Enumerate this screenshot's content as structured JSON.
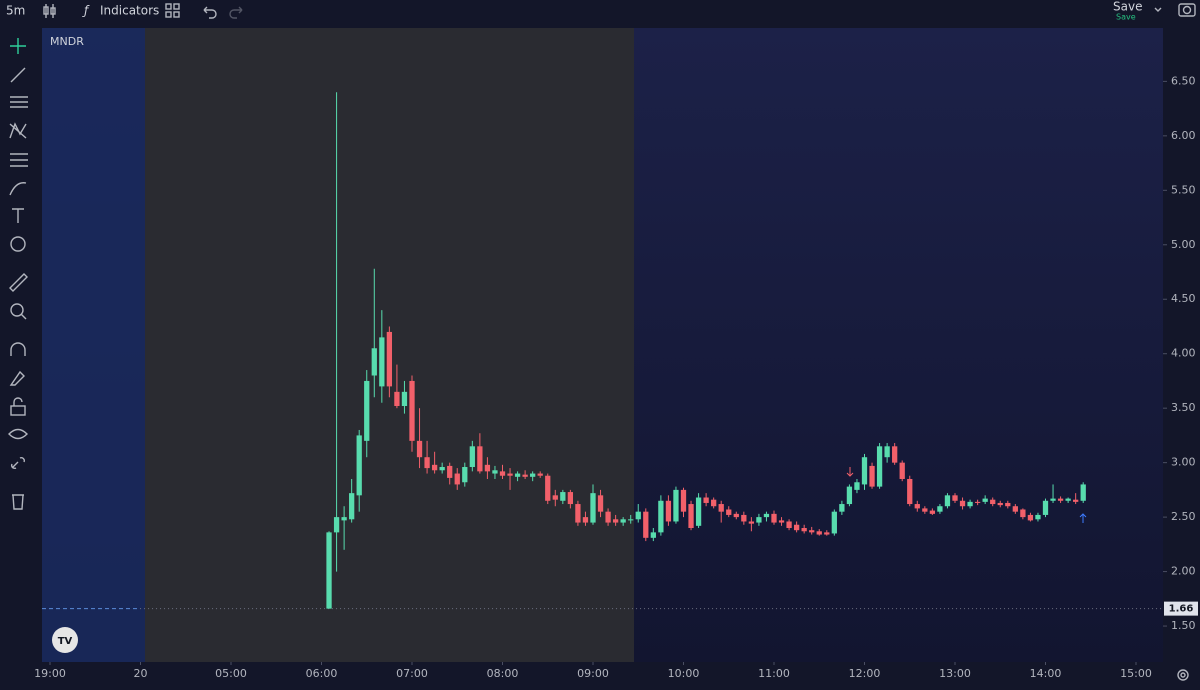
{
  "toolbar": {
    "interval": "5m",
    "indicators": "Indicators",
    "save": "Save",
    "save_status": "Save"
  },
  "chart_data": {
    "type": "candlestick",
    "title": "MNDR",
    "x": [
      365,
      370,
      375,
      380,
      385,
      390,
      395,
      400,
      405,
      410,
      415,
      420,
      425,
      430,
      435,
      440,
      445,
      450,
      455,
      460,
      465,
      470,
      475,
      480,
      485,
      490,
      495,
      500,
      505,
      510,
      515,
      520,
      525,
      530,
      535,
      540,
      545,
      550,
      555,
      560,
      565,
      570,
      575,
      580,
      585,
      590,
      595,
      600,
      605,
      610,
      615,
      620,
      625,
      630,
      635,
      640,
      645,
      650,
      655,
      660,
      665,
      670,
      675,
      680,
      685,
      690,
      695,
      700,
      705,
      710,
      715,
      720,
      725,
      730,
      735,
      740,
      745,
      750,
      755,
      760,
      765,
      770,
      775,
      780,
      785,
      790,
      795,
      800,
      805,
      810,
      815,
      820,
      825,
      830,
      835,
      840,
      845,
      850,
      855,
      860,
      865
    ],
    "open": [
      1.66,
      2.36,
      2.47,
      2.48,
      2.7,
      3.2,
      3.8,
      3.7,
      4.2,
      3.65,
      3.52,
      3.75,
      3.2,
      3.05,
      2.98,
      2.93,
      2.97,
      2.9,
      2.82,
      2.96,
      3.15,
      2.98,
      2.9,
      2.92,
      2.9,
      2.87,
      2.89,
      2.87,
      2.9,
      2.88,
      2.7,
      2.65,
      2.73,
      2.62,
      2.5,
      2.45,
      2.7,
      2.55,
      2.48,
      2.45,
      2.47,
      2.48,
      2.55,
      2.31,
      2.36,
      2.65,
      2.46,
      2.75,
      2.62,
      2.42,
      2.68,
      2.66,
      2.62,
      2.57,
      2.53,
      2.52,
      2.46,
      2.45,
      2.5,
      2.53,
      2.47,
      2.46,
      2.43,
      2.4,
      2.38,
      2.37,
      2.36,
      2.35,
      2.55,
      2.62,
      2.75,
      2.8,
      2.97,
      2.78,
      3.05,
      3.15,
      3.0,
      2.85,
      2.62,
      2.58,
      2.56,
      2.55,
      2.6,
      2.7,
      2.65,
      2.6,
      2.64,
      2.64,
      2.66,
      2.63,
      2.63,
      2.6,
      2.57,
      2.52,
      2.48,
      2.52,
      2.65,
      2.67,
      2.65,
      2.66,
      2.65
    ],
    "high": [
      2.37,
      6.4,
      2.6,
      2.85,
      3.3,
      3.85,
      4.78,
      4.4,
      4.25,
      3.9,
      3.75,
      3.8,
      3.5,
      3.2,
      3.1,
      3.0,
      3.0,
      2.95,
      3.0,
      3.2,
      3.27,
      3.05,
      2.97,
      2.98,
      2.95,
      2.92,
      2.93,
      2.92,
      2.92,
      2.9,
      2.75,
      2.75,
      2.75,
      2.65,
      2.55,
      2.8,
      2.75,
      2.58,
      2.52,
      2.5,
      2.52,
      2.62,
      2.58,
      2.4,
      2.7,
      2.7,
      2.78,
      2.77,
      2.65,
      2.72,
      2.72,
      2.68,
      2.65,
      2.6,
      2.55,
      2.55,
      2.5,
      2.53,
      2.55,
      2.56,
      2.5,
      2.48,
      2.46,
      2.43,
      2.41,
      2.39,
      2.38,
      2.57,
      2.65,
      2.8,
      2.85,
      3.08,
      3.0,
      3.18,
      3.18,
      3.18,
      3.02,
      2.88,
      2.65,
      2.6,
      2.58,
      2.62,
      2.72,
      2.72,
      2.68,
      2.66,
      2.66,
      2.7,
      2.68,
      2.65,
      2.65,
      2.62,
      2.58,
      2.54,
      2.54,
      2.67,
      2.8,
      2.69,
      2.68,
      2.72,
      2.82
    ],
    "low": [
      1.66,
      2.0,
      2.2,
      2.45,
      2.55,
      3.05,
      3.6,
      3.55,
      3.6,
      3.5,
      3.45,
      3.1,
      2.95,
      2.9,
      2.9,
      2.9,
      2.8,
      2.75,
      2.78,
      2.92,
      2.9,
      2.85,
      2.85,
      2.85,
      2.75,
      2.83,
      2.85,
      2.83,
      2.86,
      2.62,
      2.6,
      2.62,
      2.58,
      2.42,
      2.42,
      2.43,
      2.5,
      2.42,
      2.42,
      2.42,
      2.44,
      2.45,
      2.28,
      2.28,
      2.33,
      2.42,
      2.44,
      2.5,
      2.38,
      2.4,
      2.6,
      2.58,
      2.45,
      2.5,
      2.48,
      2.43,
      2.37,
      2.42,
      2.46,
      2.43,
      2.42,
      2.38,
      2.36,
      2.35,
      2.34,
      2.33,
      2.33,
      2.33,
      2.52,
      2.6,
      2.72,
      2.75,
      2.76,
      2.76,
      3.0,
      2.98,
      2.83,
      2.6,
      2.55,
      2.53,
      2.52,
      2.53,
      2.58,
      2.63,
      2.57,
      2.58,
      2.61,
      2.62,
      2.6,
      2.59,
      2.58,
      2.53,
      2.48,
      2.46,
      2.46,
      2.5,
      2.63,
      2.63,
      2.63,
      2.62,
      2.63
    ],
    "close": [
      2.36,
      2.5,
      2.5,
      2.72,
      3.25,
      3.75,
      4.05,
      4.15,
      3.7,
      3.52,
      3.65,
      3.2,
      3.05,
      2.95,
      2.93,
      2.96,
      2.86,
      2.8,
      2.96,
      3.15,
      2.92,
      2.92,
      2.93,
      2.88,
      2.88,
      2.9,
      2.87,
      2.9,
      2.88,
      2.65,
      2.66,
      2.73,
      2.62,
      2.45,
      2.45,
      2.72,
      2.55,
      2.45,
      2.45,
      2.48,
      2.48,
      2.55,
      2.31,
      2.36,
      2.65,
      2.46,
      2.75,
      2.55,
      2.4,
      2.68,
      2.63,
      2.6,
      2.55,
      2.52,
      2.5,
      2.46,
      2.44,
      2.5,
      2.53,
      2.45,
      2.45,
      2.4,
      2.38,
      2.37,
      2.36,
      2.34,
      2.34,
      2.55,
      2.62,
      2.78,
      2.82,
      3.05,
      2.78,
      3.15,
      3.15,
      3.0,
      2.85,
      2.62,
      2.58,
      2.55,
      2.53,
      2.6,
      2.7,
      2.65,
      2.6,
      2.64,
      2.63,
      2.67,
      2.62,
      2.61,
      2.6,
      2.55,
      2.5,
      2.47,
      2.52,
      2.65,
      2.67,
      2.65,
      2.67,
      2.64,
      2.8
    ],
    "up_color": "#58dcae",
    "down_color": "#f2606a",
    "price_line": 1.66,
    "xlim": [
      174.7,
      917.9
    ],
    "xticks": [
      {
        "value": 180,
        "label": "19:00"
      },
      {
        "value": 240,
        "label": "20"
      },
      {
        "value": 300,
        "label": "05:00"
      },
      {
        "value": 360,
        "label": "06:00"
      },
      {
        "value": 420,
        "label": "07:00"
      },
      {
        "value": 480,
        "label": "08:00"
      },
      {
        "value": 540,
        "label": "09:00"
      },
      {
        "value": 600,
        "label": "10:00"
      },
      {
        "value": 660,
        "label": "11:00"
      },
      {
        "value": 720,
        "label": "12:00"
      },
      {
        "value": 780,
        "label": "13:00"
      },
      {
        "value": 840,
        "label": "14:00"
      },
      {
        "value": 900,
        "label": "15:00"
      }
    ],
    "ylim": [
      1.17,
      6.99
    ],
    "yticks": [
      {
        "value": 1.5,
        "label": "1.50"
      },
      {
        "value": 2,
        "label": "2.00"
      },
      {
        "value": 2.5,
        "label": "2.50"
      },
      {
        "value": 3,
        "label": "3.00"
      },
      {
        "value": 3.5,
        "label": "3.50"
      },
      {
        "value": 4,
        "label": "4.00"
      },
      {
        "value": 4.5,
        "label": "4.50"
      },
      {
        "value": 5,
        "label": "5.00"
      },
      {
        "value": 5.5,
        "label": "5.50"
      },
      {
        "value": 6,
        "label": "6.00"
      },
      {
        "value": 6.5,
        "label": "6.50"
      }
    ]
  }
}
